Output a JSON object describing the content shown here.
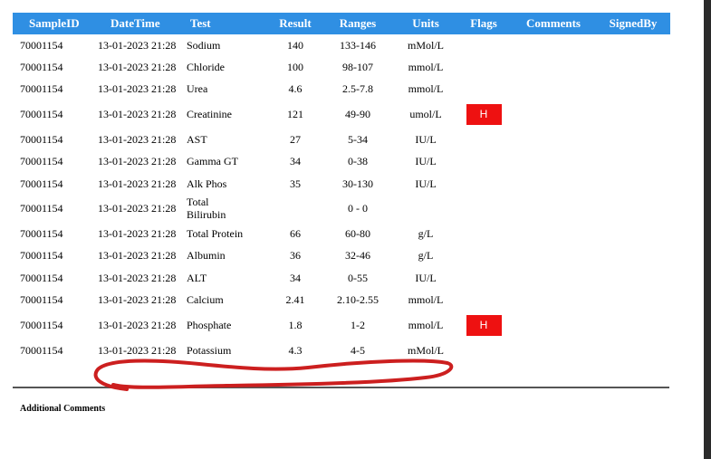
{
  "columns": [
    "SampleID",
    "DateTime",
    "Test",
    "Result",
    "Ranges",
    "Units",
    "Flags",
    "Comments",
    "SignedBy"
  ],
  "rows": [
    {
      "sample": "70001154",
      "datetime": "13-01-2023 21:28",
      "test": "Sodium",
      "result": "140",
      "range": "133-146",
      "units": "mMol/L",
      "flag": ""
    },
    {
      "sample": "70001154",
      "datetime": "13-01-2023 21:28",
      "test": "Chloride",
      "result": "100",
      "range": "98-107",
      "units": "mmol/L",
      "flag": ""
    },
    {
      "sample": "70001154",
      "datetime": "13-01-2023 21:28",
      "test": "Urea",
      "result": "4.6",
      "range": "2.5-7.8",
      "units": "mmol/L",
      "flag": ""
    },
    {
      "sample": "70001154",
      "datetime": "13-01-2023 21:28",
      "test": "Creatinine",
      "result": "121",
      "range": "49-90",
      "units": "umol/L",
      "flag": "H"
    },
    {
      "sample": "70001154",
      "datetime": "13-01-2023 21:28",
      "test": "AST",
      "result": "27",
      "range": "5-34",
      "units": "IU/L",
      "flag": ""
    },
    {
      "sample": "70001154",
      "datetime": "13-01-2023 21:28",
      "test": "Gamma GT",
      "result": "34",
      "range": "0-38",
      "units": "IU/L",
      "flag": ""
    },
    {
      "sample": "70001154",
      "datetime": "13-01-2023 21:28",
      "test": "Alk Phos",
      "result": "35",
      "range": "30-130",
      "units": "IU/L",
      "flag": ""
    },
    {
      "sample": "70001154",
      "datetime": "13-01-2023 21:28",
      "test": "Total Bilirubin",
      "result": "",
      "range": "0 - 0",
      "units": "",
      "flag": ""
    },
    {
      "sample": "70001154",
      "datetime": "13-01-2023 21:28",
      "test": "Total Protein",
      "result": "66",
      "range": "60-80",
      "units": "g/L",
      "flag": ""
    },
    {
      "sample": "70001154",
      "datetime": "13-01-2023 21:28",
      "test": "Albumin",
      "result": "36",
      "range": "32-46",
      "units": "g/L",
      "flag": ""
    },
    {
      "sample": "70001154",
      "datetime": "13-01-2023 21:28",
      "test": "ALT",
      "result": "34",
      "range": "0-55",
      "units": "IU/L",
      "flag": ""
    },
    {
      "sample": "70001154",
      "datetime": "13-01-2023 21:28",
      "test": "Calcium",
      "result": "2.41",
      "range": "2.10-2.55",
      "units": "mmol/L",
      "flag": ""
    },
    {
      "sample": "70001154",
      "datetime": "13-01-2023 21:28",
      "test": "Phosphate",
      "result": "1.8",
      "range": "1-2",
      "units": "mmol/L",
      "flag": "H"
    },
    {
      "sample": "70001154",
      "datetime": "13-01-2023 21:28",
      "test": "Potassium",
      "result": "4.3",
      "range": "4-5",
      "units": "mMol/L",
      "flag": ""
    }
  ],
  "additional_comments_label": "Additional Comments",
  "colors": {
    "header_bg": "#2f8fe3",
    "flag_bg": "#ee1111",
    "annotation": "#cc1f1f"
  }
}
